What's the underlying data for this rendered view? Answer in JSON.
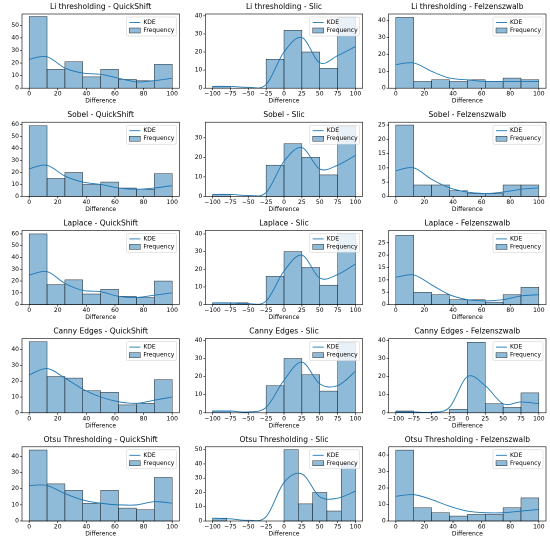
{
  "chart_data": [
    {
      "type": "histogram",
      "title": "Li thresholding - QuickShift",
      "xlabel": "Difference",
      "bins": [
        0,
        12.5,
        25,
        37.5,
        50,
        62.5,
        75,
        87.5,
        100
      ],
      "series": [
        {
          "name": "Frequency",
          "color": "#1f77b4",
          "values": [
            57,
            15,
            21,
            9,
            15,
            7,
            6,
            19
          ]
        }
      ],
      "kde": {
        "name": "KDE",
        "color": "#1f77b4",
        "x": [
          0,
          12.5,
          25,
          37.5,
          50,
          62.5,
          75,
          87.5,
          100
        ],
        "values": [
          23,
          25,
          16,
          12,
          11,
          8,
          5,
          6,
          8
        ]
      },
      "xlim": [
        -5,
        105
      ],
      "xticks": [
        0,
        20,
        40,
        60,
        80,
        100
      ],
      "ylim": [
        0,
        59
      ],
      "yticks": [
        0,
        10,
        20,
        30,
        40,
        50
      ],
      "legend": "upper right"
    },
    {
      "type": "histogram",
      "title": "Li thresholding - Slic",
      "xlabel": "Difference",
      "bins": [
        -100,
        -75,
        -50,
        -25,
        0,
        25,
        50,
        75,
        100
      ],
      "series": [
        {
          "name": "Frequency",
          "color": "#1f77b4",
          "values": [
            1,
            0,
            0,
            16,
            32,
            20,
            11,
            39
          ]
        }
      ],
      "kde": {
        "name": "KDE",
        "color": "#1f77b4",
        "x": [
          -100,
          -75,
          -50,
          -25,
          0,
          25,
          50,
          75,
          100
        ],
        "values": [
          1,
          1,
          0.5,
          2,
          20,
          28,
          14,
          18,
          23
        ]
      },
      "xlim": [
        -110,
        110
      ],
      "xticks": [
        {
          "value": -100,
          "label": "−100"
        },
        {
          "value": -75,
          "label": "−75"
        },
        {
          "value": -50,
          "label": "−50"
        },
        {
          "value": -25,
          "label": "−25"
        },
        0,
        25,
        50,
        75,
        100
      ],
      "ylim": [
        0,
        41
      ],
      "yticks": [
        0,
        10,
        20,
        30,
        40
      ],
      "legend": "upper right"
    },
    {
      "type": "histogram",
      "title": "Li thresholding - Felzenszwalb",
      "xlabel": "Difference",
      "bins": [
        0,
        12.5,
        25,
        37.5,
        50,
        62.5,
        75,
        87.5,
        100
      ],
      "series": [
        {
          "name": "Frequency",
          "color": "#1f77b4",
          "values": [
            42,
            4,
            5,
            4,
            5,
            4,
            6,
            5
          ]
        }
      ],
      "kde": {
        "name": "KDE",
        "color": "#1f77b4",
        "x": [
          0,
          12.5,
          25,
          37.5,
          50,
          62.5,
          75,
          87.5,
          100
        ],
        "values": [
          14,
          15,
          10,
          6,
          5,
          4,
          4,
          4,
          4
        ]
      },
      "xlim": [
        -5,
        105
      ],
      "xticks": [
        0,
        20,
        40,
        60,
        80,
        100
      ],
      "ylim": [
        0,
        44
      ],
      "yticks": [
        0,
        10,
        20,
        30,
        40
      ],
      "legend": "upper right"
    },
    {
      "type": "histogram",
      "title": "Sobel  - QuickShift",
      "xlabel": "Difference",
      "bins": [
        0,
        12.5,
        25,
        37.5,
        50,
        62.5,
        75,
        87.5,
        100
      ],
      "series": [
        {
          "name": "Frequency",
          "color": "#1f77b4",
          "values": [
            59,
            15,
            20,
            10,
            12,
            7,
            6,
            19
          ]
        }
      ],
      "kde": {
        "name": "KDE",
        "color": "#1f77b4",
        "x": [
          0,
          12.5,
          25,
          37.5,
          50,
          62.5,
          75,
          87.5,
          100
        ],
        "values": [
          23,
          26,
          17,
          12,
          10,
          7,
          6,
          7,
          9
        ]
      },
      "xlim": [
        -5,
        105
      ],
      "xticks": [
        0,
        20,
        40,
        60,
        80,
        100
      ],
      "ylim": [
        0,
        62
      ],
      "yticks": [
        0,
        10,
        20,
        30,
        40,
        50,
        60
      ],
      "legend": "upper right"
    },
    {
      "type": "histogram",
      "title": "Sobel  - Slic",
      "xlabel": "Difference",
      "bins": [
        -100,
        -75,
        -50,
        -25,
        0,
        25,
        50,
        75,
        100
      ],
      "series": [
        {
          "name": "Frequency",
          "color": "#1f77b4",
          "values": [
            1,
            0,
            0,
            16,
            27,
            20,
            11,
            36
          ]
        }
      ],
      "kde": {
        "name": "KDE",
        "color": "#1f77b4",
        "x": [
          -100,
          -75,
          -50,
          -25,
          0,
          25,
          50,
          75,
          100
        ],
        "values": [
          1,
          1,
          0.5,
          2,
          18,
          25,
          14,
          16,
          21
        ]
      },
      "xlim": [
        -110,
        110
      ],
      "xticks": [
        {
          "value": -100,
          "label": "−100"
        },
        {
          "value": -75,
          "label": "−75"
        },
        {
          "value": -50,
          "label": "−50"
        },
        {
          "value": -25,
          "label": "−25"
        },
        0,
        25,
        50,
        75,
        100
      ],
      "ylim": [
        0,
        38
      ],
      "yticks": [
        0,
        10,
        20,
        30
      ],
      "legend": "upper right"
    },
    {
      "type": "histogram",
      "title": "Sobel  - Felzenszwalb",
      "xlabel": "Difference",
      "bins": [
        0,
        12.5,
        25,
        37.5,
        50,
        62.5,
        75,
        87.5,
        100
      ],
      "series": [
        {
          "name": "Frequency",
          "color": "#1f77b4",
          "values": [
            25,
            4,
            4,
            2,
            1,
            1,
            4,
            4
          ]
        }
      ],
      "kde": {
        "name": "KDE",
        "color": "#1f77b4",
        "x": [
          0,
          12.5,
          25,
          37.5,
          50,
          62.5,
          75,
          87.5,
          100
        ],
        "values": [
          9,
          10,
          6,
          3,
          1.5,
          1,
          1.5,
          2.5,
          3
        ]
      },
      "xlim": [
        -5,
        105
      ],
      "xticks": [
        0,
        20,
        40,
        60,
        80,
        100
      ],
      "ylim": [
        0,
        26
      ],
      "yticks": [
        0,
        5,
        10,
        15,
        20,
        25
      ],
      "legend": "upper right"
    },
    {
      "type": "histogram",
      "title": "Laplace  - QuickShift",
      "xlabel": "Difference",
      "bins": [
        0,
        12.5,
        25,
        37.5,
        50,
        62.5,
        75,
        87.5,
        100
      ],
      "series": [
        {
          "name": "Frequency",
          "color": "#1f77b4",
          "values": [
            60,
            17,
            21,
            9,
            13,
            7,
            6,
            20
          ]
        }
      ],
      "kde": {
        "name": "KDE",
        "color": "#1f77b4",
        "x": [
          0,
          12.5,
          25,
          37.5,
          50,
          62.5,
          75,
          87.5,
          100
        ],
        "values": [
          25,
          28,
          18,
          12,
          11,
          7,
          6,
          8,
          10
        ]
      },
      "xlim": [
        -5,
        105
      ],
      "xticks": [
        0,
        20,
        40,
        60,
        80,
        100
      ],
      "ylim": [
        0,
        63
      ],
      "yticks": [
        0,
        10,
        20,
        30,
        40,
        50,
        60
      ],
      "legend": "upper right"
    },
    {
      "type": "histogram",
      "title": "Laplace  - Slic",
      "xlabel": "Difference",
      "bins": [
        -100,
        -75,
        -50,
        -25,
        0,
        25,
        50,
        75,
        100
      ],
      "series": [
        {
          "name": "Frequency",
          "color": "#1f77b4",
          "values": [
            1,
            1,
            0,
            16,
            30,
            21,
            11,
            40
          ]
        }
      ],
      "kde": {
        "name": "KDE",
        "color": "#1f77b4",
        "x": [
          -100,
          -75,
          -50,
          -25,
          0,
          25,
          50,
          75,
          100
        ],
        "values": [
          1,
          1,
          0.5,
          2,
          19,
          28,
          15,
          17,
          23
        ]
      },
      "xlim": [
        -110,
        110
      ],
      "xticks": [
        {
          "value": -100,
          "label": "−100"
        },
        {
          "value": -75,
          "label": "−75"
        },
        {
          "value": -50,
          "label": "−50"
        },
        {
          "value": -25,
          "label": "−25"
        },
        0,
        25,
        50,
        75,
        100
      ],
      "ylim": [
        0,
        42
      ],
      "yticks": [
        0,
        10,
        20,
        30,
        40
      ],
      "legend": "upper right"
    },
    {
      "type": "histogram",
      "title": "Laplace  - Felzenszwalb",
      "xlabel": "Difference",
      "bins": [
        0,
        12.5,
        25,
        37.5,
        50,
        62.5,
        75,
        87.5,
        100
      ],
      "series": [
        {
          "name": "Frequency",
          "color": "#1f77b4",
          "values": [
            28,
            5,
            4,
            2,
            2,
            1,
            4,
            7
          ]
        }
      ],
      "kde": {
        "name": "KDE",
        "color": "#1f77b4",
        "x": [
          0,
          12.5,
          25,
          37.5,
          50,
          62.5,
          75,
          87.5,
          100
        ],
        "values": [
          11,
          12,
          8,
          4,
          2,
          1.5,
          2,
          3.5,
          4
        ]
      },
      "xlim": [
        -5,
        105
      ],
      "xticks": [
        0,
        20,
        40,
        60,
        80,
        100
      ],
      "ylim": [
        0,
        30
      ],
      "yticks": [
        0,
        5,
        10,
        15,
        20,
        25
      ],
      "legend": "upper right"
    },
    {
      "type": "histogram",
      "title": "Canny Edges - QuickShift",
      "xlabel": "Difference",
      "bins": [
        0,
        12.5,
        25,
        37.5,
        50,
        62.5,
        75,
        87.5,
        100
      ],
      "series": [
        {
          "name": "Frequency",
          "color": "#1f77b4",
          "values": [
            45,
            23,
            22,
            14,
            13,
            5,
            6,
            21
          ]
        }
      ],
      "kde": {
        "name": "KDE",
        "color": "#1f77b4",
        "x": [
          0,
          12.5,
          25,
          37.5,
          50,
          62.5,
          75,
          87.5,
          100
        ],
        "values": [
          24,
          28,
          22,
          15,
          10,
          7,
          6,
          8,
          10
        ]
      },
      "xlim": [
        -5,
        105
      ],
      "xticks": [
        0,
        20,
        40,
        60,
        80,
        100
      ],
      "ylim": [
        0,
        47
      ],
      "yticks": [
        0,
        10,
        20,
        30,
        40
      ],
      "legend": "upper right"
    },
    {
      "type": "histogram",
      "title": "Canny Edges - Slic",
      "xlabel": "Difference",
      "bins": [
        -100,
        -75,
        -50,
        -25,
        0,
        25,
        50,
        75,
        100
      ],
      "series": [
        {
          "name": "Frequency",
          "color": "#1f77b4",
          "values": [
            1,
            0,
            0,
            15,
            30,
            21,
            12,
            39
          ]
        }
      ],
      "kde": {
        "name": "KDE",
        "color": "#1f77b4",
        "x": [
          -100,
          -75,
          -50,
          -25,
          0,
          25,
          50,
          75,
          100
        ],
        "values": [
          1,
          1,
          0.5,
          3,
          18,
          28,
          16,
          15,
          23
        ]
      },
      "xlim": [
        -110,
        110
      ],
      "xticks": [
        {
          "value": -100,
          "label": "−100"
        },
        {
          "value": -75,
          "label": "−75"
        },
        {
          "value": -50,
          "label": "−50"
        },
        {
          "value": -25,
          "label": "−25"
        },
        0,
        25,
        50,
        75,
        100
      ],
      "ylim": [
        0,
        41
      ],
      "yticks": [
        0,
        10,
        20,
        30,
        40
      ],
      "legend": "upper right"
    },
    {
      "type": "histogram",
      "title": "Canny Edges - Felzenszwalb",
      "xlabel": "Difference",
      "bins": [
        -100,
        -75,
        -50,
        -25,
        0,
        25,
        50,
        75,
        100
      ],
      "series": [
        {
          "name": "Frequency",
          "color": "#1f77b4",
          "values": [
            1,
            0,
            0,
            2,
            39,
            5,
            3,
            11
          ]
        }
      ],
      "kde": {
        "name": "KDE",
        "color": "#1f77b4",
        "x": [
          -100,
          -75,
          -50,
          -25,
          0,
          25,
          50,
          75,
          100
        ],
        "values": [
          0.5,
          0.5,
          0.3,
          3,
          20,
          15,
          5,
          6,
          5
        ]
      },
      "xlim": [
        -110,
        110
      ],
      "xticks": [
        {
          "value": -100,
          "label": "−100"
        },
        {
          "value": -75,
          "label": "−75"
        },
        {
          "value": -50,
          "label": "−50"
        },
        {
          "value": -25,
          "label": "−25"
        },
        0,
        25,
        50,
        75,
        100
      ],
      "ylim": [
        0,
        41
      ],
      "yticks": [
        0,
        10,
        20,
        30,
        40
      ],
      "legend": "upper right"
    },
    {
      "type": "histogram",
      "title": "Otsu Thresholding - QuickShift",
      "xlabel": "Difference",
      "bins": [
        0,
        12.5,
        25,
        37.5,
        50,
        62.5,
        75,
        87.5,
        100
      ],
      "series": [
        {
          "name": "Frequency",
          "color": "#1f77b4",
          "values": [
            44,
            23,
            19,
            11,
            19,
            8,
            7,
            27
          ]
        }
      ],
      "kde": {
        "name": "KDE",
        "color": "#1f77b4",
        "x": [
          0,
          12.5,
          25,
          37.5,
          50,
          62.5,
          75,
          87.5,
          100
        ],
        "values": [
          22,
          22,
          17,
          13,
          11,
          10,
          10,
          12,
          11
        ]
      },
      "xlim": [
        -5,
        105
      ],
      "xticks": [
        0,
        20,
        40,
        60,
        80,
        100
      ],
      "ylim": [
        0,
        46
      ],
      "yticks": [
        0,
        10,
        20,
        30,
        40
      ],
      "legend": "upper right"
    },
    {
      "type": "histogram",
      "title": "Otsu Thresholding - Slic",
      "xlabel": "Difference",
      "bins": [
        -100,
        -80,
        -60,
        -40,
        -20,
        0,
        20,
        40,
        60,
        80,
        100
      ],
      "series": [
        {
          "name": "Frequency",
          "color": "#1f77b4",
          "values": [
            2,
            0,
            0,
            0,
            0,
            50,
            12,
            20,
            7,
            40
          ]
        }
      ],
      "kde": {
        "name": "KDE",
        "color": "#1f77b4",
        "x": [
          -100,
          -75,
          -50,
          -25,
          0,
          25,
          50,
          75,
          100
        ],
        "values": [
          2,
          1.5,
          0.5,
          3,
          27,
          33,
          17,
          16,
          21
        ]
      },
      "xlim": [
        -110,
        110
      ],
      "xticks": [
        {
          "value": -100,
          "label": "−100"
        },
        {
          "value": -75,
          "label": "−75"
        },
        {
          "value": -50,
          "label": "−50"
        },
        {
          "value": -25,
          "label": "−25"
        },
        0,
        25,
        50,
        75,
        100
      ],
      "ylim": [
        0,
        52
      ],
      "yticks": [
        0,
        10,
        20,
        30,
        40,
        50
      ],
      "legend": "upper right"
    },
    {
      "type": "histogram",
      "title": "Otsu Thresholding - Felzenszwalb",
      "xlabel": "Difference",
      "bins": [
        0,
        12.5,
        25,
        37.5,
        50,
        62.5,
        75,
        87.5,
        100
      ],
      "series": [
        {
          "name": "Frequency",
          "color": "#1f77b4",
          "values": [
            43,
            8,
            5,
            3,
            4,
            4,
            8,
            14
          ]
        }
      ],
      "kde": {
        "name": "KDE",
        "color": "#1f77b4",
        "x": [
          0,
          12.5,
          25,
          37.5,
          50,
          62.5,
          75,
          87.5,
          100
        ],
        "values": [
          15,
          16,
          13,
          9,
          6,
          5,
          5,
          6,
          7
        ]
      },
      "xlim": [
        -5,
        105
      ],
      "xticks": [
        0,
        20,
        40,
        60,
        80,
        100
      ],
      "ylim": [
        0,
        45
      ],
      "yticks": [
        0,
        10,
        20,
        30,
        40
      ],
      "legend": "upper right"
    }
  ]
}
